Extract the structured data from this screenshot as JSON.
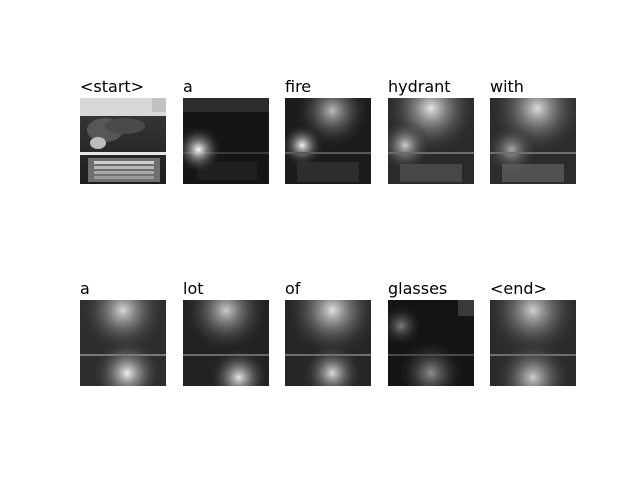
{
  "words": [
    "<start>",
    "a",
    "fire",
    "hydrant",
    "with",
    "a",
    "lot",
    "of",
    "glasses",
    "<end>"
  ],
  "colors": {
    "background": "#ffffff",
    "label_text": "#000000",
    "attention_dark": "#111111",
    "attention_bright": "#f2f2f2"
  }
}
